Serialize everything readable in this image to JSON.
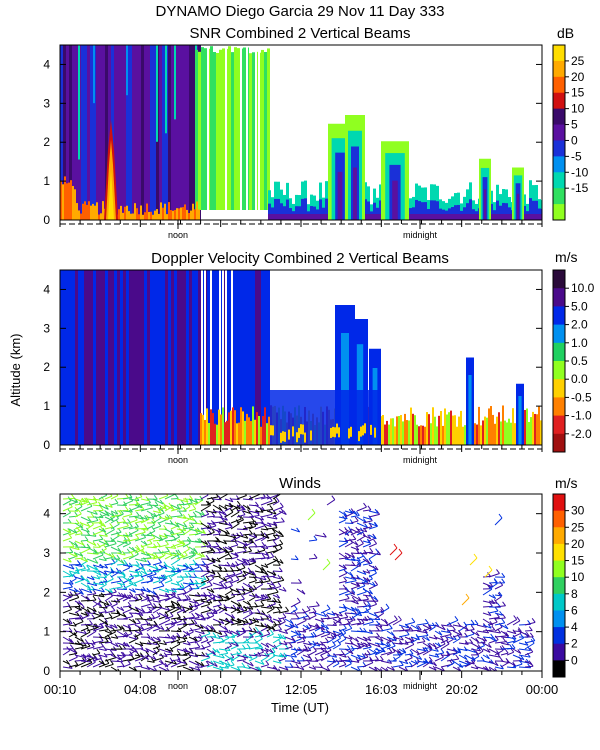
{
  "header": {
    "title": "DYNAMO Diego Garcia  29 Nov 11 Day 333"
  },
  "chart_data": [
    {
      "type": "heatmap",
      "title": "SNR Combined 2 Vertical Beams",
      "ylim": [
        0,
        4.5
      ],
      "yticks": [
        "0",
        "1",
        "2",
        "3",
        "4"
      ],
      "marker_labels": [
        "noon",
        "midnight"
      ],
      "colorbar": {
        "unit": "dB",
        "ticks": [
          "25",
          "20",
          "15",
          "10",
          "5",
          "0",
          "-5",
          "-10",
          "-15"
        ],
        "colors": [
          "#ffdd00",
          "#ffaa00",
          "#ff6000",
          "#d01010",
          "#3a0a6a",
          "#5a10a0",
          "#1a30d8",
          "#0090f0",
          "#00d8b0",
          "#30e060",
          "#90ff20"
        ]
      }
    },
    {
      "type": "heatmap",
      "title": "Doppler Velocity Combined 2 Vertical Beams",
      "ylabel": "Altitude (km)",
      "ylim": [
        0,
        4.5
      ],
      "yticks": [
        "0",
        "1",
        "2",
        "3",
        "4"
      ],
      "marker_labels": [
        "noon",
        "midnight"
      ],
      "colorbar": {
        "unit": "m/s",
        "ticks": [
          "10.0",
          "5.0",
          "2.0",
          "1.0",
          "0.5",
          "0.0",
          "-0.5",
          "-1.0",
          "-2.0"
        ],
        "colors": [
          "#2a0a3a",
          "#4a0a8a",
          "#0028e8",
          "#0090f0",
          "#20d060",
          "#90ff20",
          "#ffd000",
          "#ff8000",
          "#e02020",
          "#a01010"
        ]
      }
    },
    {
      "type": "barbs",
      "title": "Winds",
      "xlabel": "Time (UT)",
      "ylim": [
        0,
        4.5
      ],
      "yticks": [
        "0",
        "1",
        "2",
        "3",
        "4"
      ],
      "xticks": [
        "00:10",
        "04:08",
        "08:07",
        "12:05",
        "16:03",
        "20:02",
        "00:00"
      ],
      "marker_labels": [
        "noon",
        "midnight"
      ],
      "colorbar": {
        "unit": "m/s",
        "ticks": [
          "30",
          "25",
          "20",
          "15",
          "10",
          "8",
          "6",
          "4",
          "2",
          "0"
        ],
        "colors": [
          "#e01010",
          "#ff6000",
          "#ffaa00",
          "#ffe000",
          "#90ff20",
          "#30d060",
          "#00c8c8",
          "#0090f0",
          "#0030e0",
          "#3a0aa0",
          "#000000"
        ]
      }
    }
  ]
}
